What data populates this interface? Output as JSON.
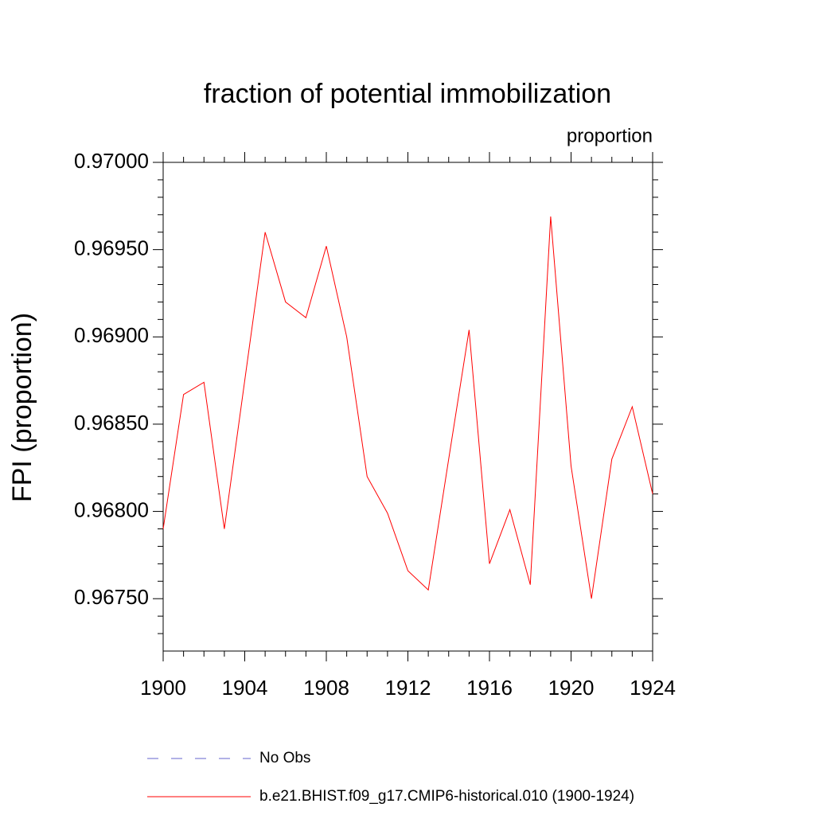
{
  "chart_data": {
    "type": "line",
    "title": "fraction of potential immobilization",
    "subtitle": "proportion",
    "y_label": "FPI  (proportion)",
    "x": [
      1900,
      1901,
      1902,
      1903,
      1904,
      1905,
      1906,
      1907,
      1908,
      1909,
      1910,
      1911,
      1912,
      1913,
      1914,
      1915,
      1916,
      1917,
      1918,
      1919,
      1920,
      1921,
      1922,
      1923,
      1924
    ],
    "series": [
      {
        "name": "No Obs",
        "color": "#6666cc",
        "dashed": true,
        "values": [
          null,
          null,
          null,
          null,
          null,
          null,
          null,
          null,
          null,
          null,
          null,
          null,
          null,
          null,
          null,
          null,
          null,
          null,
          null,
          null,
          null,
          null,
          null,
          null,
          null
        ]
      },
      {
        "name": "b.e21.BHIST.f09_g17.CMIP6-historical.010 (1900-1924)",
        "color": "#ff0000",
        "dashed": false,
        "values": [
          0.9679,
          0.96867,
          0.96874,
          0.9679,
          0.96875,
          0.9696,
          0.9692,
          0.96911,
          0.96952,
          0.969,
          0.9682,
          0.96799,
          0.96766,
          0.96755,
          0.9683,
          0.96904,
          0.9677,
          0.96801,
          0.96758,
          0.96969,
          0.96826,
          0.9675,
          0.9683,
          0.9686,
          0.9681
        ]
      }
    ],
    "xlim": [
      1900,
      1924
    ],
    "xticks": [
      1900,
      1904,
      1908,
      1912,
      1916,
      1920,
      1924
    ],
    "xminorticks": [
      1901,
      1902,
      1903,
      1905,
      1906,
      1907,
      1909,
      1910,
      1911,
      1913,
      1914,
      1915,
      1917,
      1918,
      1919,
      1921,
      1922,
      1923
    ],
    "ylim": [
      0.9672,
      0.97
    ],
    "yticks": [
      {
        "value": 0.9675,
        "label": "0.96750"
      },
      {
        "value": 0.968,
        "label": "0.96800"
      },
      {
        "value": 0.9685,
        "label": "0.96850"
      },
      {
        "value": 0.969,
        "label": "0.96900"
      },
      {
        "value": 0.9695,
        "label": "0.96950"
      },
      {
        "value": 0.97,
        "label": "0.97000"
      }
    ],
    "yminorticks": [
      0.9673,
      0.9674,
      0.9676,
      0.9677,
      0.9678,
      0.9679,
      0.9681,
      0.9682,
      0.9683,
      0.9684,
      0.9686,
      0.9687,
      0.9688,
      0.9689,
      0.9691,
      0.9692,
      0.9693,
      0.9694,
      0.9696,
      0.9697,
      0.9698,
      0.9699
    ],
    "grid": false
  }
}
